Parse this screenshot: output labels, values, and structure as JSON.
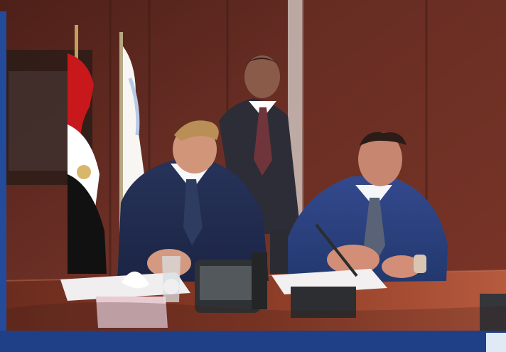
{
  "image": {
    "alt": "",
    "colors": {
      "wall_wood": "#6b2f25",
      "table_wood": "#8a3a25",
      "suit_left": "#27335a",
      "suit_right": "#33498d",
      "frame_blue": "#1f3f86"
    },
    "elements": {
      "flags": [
        "egypt-flag",
        "white-flag"
      ],
      "people": [
        "standing-man",
        "signing-man-left",
        "signing-man-right"
      ],
      "props": [
        "microphone",
        "phone",
        "glass",
        "tissue-box",
        "documents"
      ]
    }
  }
}
